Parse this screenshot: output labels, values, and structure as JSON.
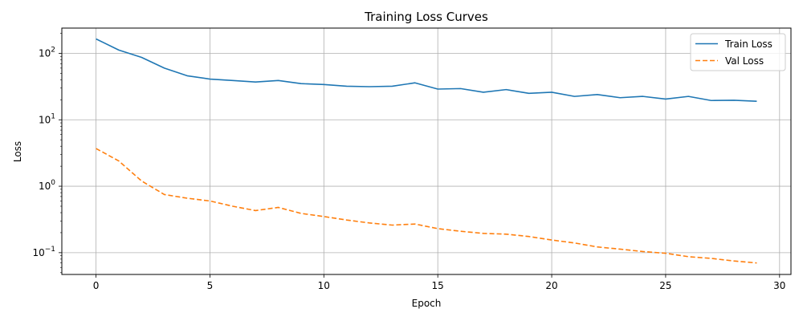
{
  "chart_data": {
    "type": "line",
    "title": "Training Loss Curves",
    "xlabel": "Epoch",
    "ylabel": "Loss",
    "yscale": "log",
    "xlim": [
      -1.5,
      30.5
    ],
    "ylim": [
      0.047,
      240
    ],
    "grid": true,
    "legend_position": "top-right",
    "x": [
      0,
      1,
      2,
      3,
      4,
      5,
      6,
      7,
      8,
      9,
      10,
      11,
      12,
      13,
      14,
      15,
      16,
      17,
      18,
      19,
      20,
      21,
      22,
      23,
      24,
      25,
      26,
      27,
      28,
      29
    ],
    "x_ticks": [
      0,
      5,
      10,
      15,
      20,
      25,
      30
    ],
    "y_ticks": [
      {
        "value": 100,
        "base": "10",
        "exp": "2"
      },
      {
        "value": 10,
        "base": "10",
        "exp": "1"
      },
      {
        "value": 1,
        "base": "10",
        "exp": "0"
      },
      {
        "value": 0.1,
        "base": "10",
        "exp": "−1"
      }
    ],
    "series": [
      {
        "name": "Train Loss",
        "color": "#1f77b4",
        "dash": "solid",
        "values": [
          165,
          112,
          87,
          60,
          46,
          41,
          39,
          37,
          39,
          35,
          34,
          32,
          31.5,
          32,
          36,
          29,
          29.5,
          26,
          28.5,
          25,
          26,
          22.5,
          24,
          21.5,
          22.5,
          20.5,
          22.5,
          19.5,
          19.7,
          19
        ]
      },
      {
        "name": "Val Loss",
        "color": "#ff7f0e",
        "dash": "dashed",
        "values": [
          3.7,
          2.4,
          1.2,
          0.75,
          0.66,
          0.6,
          0.5,
          0.43,
          0.48,
          0.39,
          0.35,
          0.31,
          0.28,
          0.26,
          0.27,
          0.23,
          0.21,
          0.195,
          0.19,
          0.175,
          0.155,
          0.14,
          0.122,
          0.113,
          0.104,
          0.098,
          0.087,
          0.082,
          0.075,
          0.07
        ]
      }
    ]
  }
}
